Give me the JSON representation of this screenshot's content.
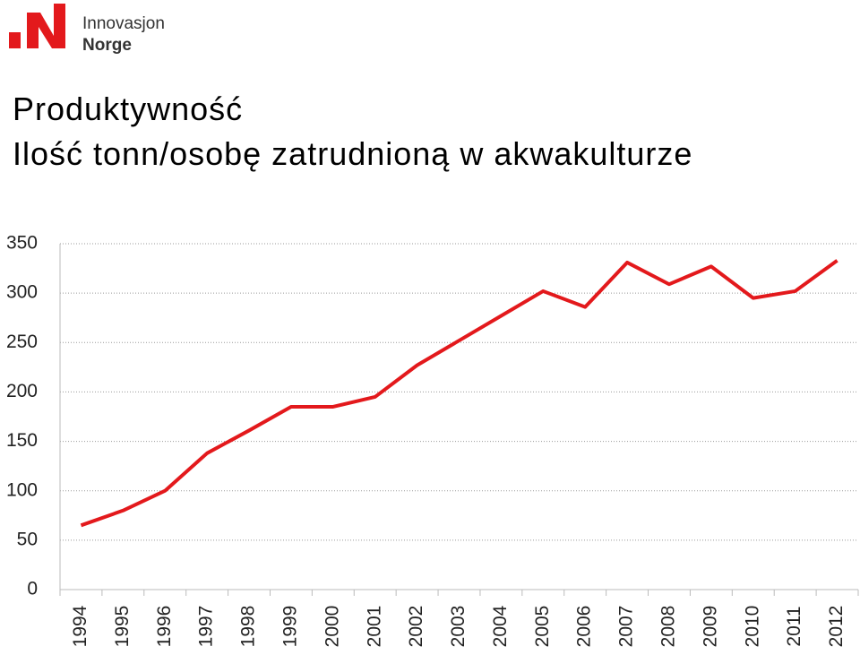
{
  "logo": {
    "line1": "Innovasjon",
    "line2": "Norge"
  },
  "chart_data": {
    "type": "line",
    "title": "Produktywność",
    "subtitle": "Ilość tonn/osobę zatrudnioną w akwakulturze",
    "categories": [
      "1994",
      "1995",
      "1996",
      "1997",
      "1998",
      "1999",
      "2000",
      "2001",
      "2002",
      "2003",
      "2004",
      "2005",
      "2006",
      "2007",
      "2008",
      "2009",
      "2010",
      "2011",
      "2012"
    ],
    "series": [
      {
        "color": "#e3191c",
        "values": [
          65,
          80,
          100,
          138,
          161,
          185,
          185,
          195,
          227,
          252,
          277,
          302,
          286,
          331,
          309,
          327,
          295,
          302,
          333
        ]
      }
    ],
    "ylim": [
      0,
      350
    ],
    "yticks": [
      0,
      50,
      100,
      150,
      200,
      250,
      300,
      350
    ],
    "grid": true
  }
}
